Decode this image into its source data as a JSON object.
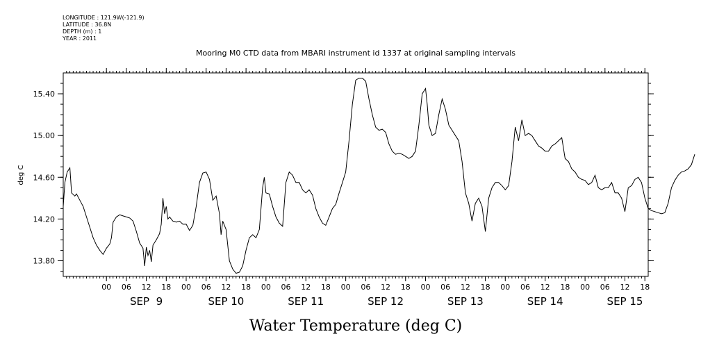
{
  "meta": {
    "longitude": "LONGITUDE : 121.9W(-121.9)",
    "latitude": "LATITUDE : 36.8N",
    "depth": "DEPTH (m) : 1",
    "year": "YEAR : 2011"
  },
  "chart_data": {
    "type": "line",
    "title": "Mooring M0 CTD data from MBARI instrument id 1337 at original sampling intervals",
    "xlabel": "Water Temperature (deg C)",
    "ylabel": "deg C",
    "ylim": [
      13.65,
      15.6
    ],
    "yticks": [
      "13.80",
      "14.20",
      "14.60",
      "15.00",
      "15.40"
    ],
    "xlim_hours": [
      -13,
      163
    ],
    "hour_ticks": [
      "00",
      "06",
      "12",
      "18",
      "00",
      "06",
      "12",
      "18",
      "00",
      "06",
      "12",
      "18",
      "00",
      "06",
      "12",
      "18",
      "00",
      "06",
      "12",
      "18",
      "00",
      "06",
      "12",
      "18",
      "00",
      "06",
      "12",
      "18"
    ],
    "day_labels": [
      "SEP  9",
      "SEP 10",
      "SEP 11",
      "SEP 12",
      "SEP 13",
      "SEP 14",
      "SEP 15"
    ],
    "grid": false,
    "series": [
      {
        "color": "#000000",
        "points": [
          [
            -13,
            14.32
          ],
          [
            -12.5,
            14.55
          ],
          [
            -11.8,
            14.65
          ],
          [
            -11,
            14.69
          ],
          [
            -10.5,
            14.45
          ],
          [
            -9.5,
            14.42
          ],
          [
            -9,
            14.44
          ],
          [
            -8,
            14.38
          ],
          [
            -7,
            14.32
          ],
          [
            -6,
            14.22
          ],
          [
            -5,
            14.12
          ],
          [
            -4,
            14.02
          ],
          [
            -3,
            13.95
          ],
          [
            -2,
            13.9
          ],
          [
            -1,
            13.86
          ],
          [
            0,
            13.92
          ],
          [
            1,
            13.96
          ],
          [
            1.5,
            14.02
          ],
          [
            2,
            14.17
          ],
          [
            3,
            14.22
          ],
          [
            4,
            14.24
          ],
          [
            5,
            14.23
          ],
          [
            6,
            14.22
          ],
          [
            7,
            14.21
          ],
          [
            8,
            14.18
          ],
          [
            9,
            14.08
          ],
          [
            10,
            13.97
          ],
          [
            11,
            13.92
          ],
          [
            11.5,
            13.75
          ],
          [
            12,
            13.93
          ],
          [
            12.5,
            13.85
          ],
          [
            13,
            13.9
          ],
          [
            13.5,
            13.79
          ],
          [
            14,
            13.95
          ],
          [
            15,
            14.0
          ],
          [
            16,
            14.06
          ],
          [
            16.5,
            14.15
          ],
          [
            17,
            14.4
          ],
          [
            17.5,
            14.25
          ],
          [
            18,
            14.32
          ],
          [
            18.5,
            14.2
          ],
          [
            19,
            14.22
          ],
          [
            20,
            14.18
          ],
          [
            21,
            14.17
          ],
          [
            22,
            14.18
          ],
          [
            23,
            14.15
          ],
          [
            24,
            14.15
          ],
          [
            25,
            14.09
          ],
          [
            26,
            14.14
          ],
          [
            27,
            14.32
          ],
          [
            28,
            14.55
          ],
          [
            29,
            14.64
          ],
          [
            30,
            14.65
          ],
          [
            31,
            14.58
          ],
          [
            32,
            14.38
          ],
          [
            33,
            14.42
          ],
          [
            34,
            14.25
          ],
          [
            34.5,
            14.05
          ],
          [
            35,
            14.18
          ],
          [
            36,
            14.1
          ],
          [
            37,
            13.8
          ],
          [
            38,
            13.72
          ],
          [
            39,
            13.68
          ],
          [
            40,
            13.69
          ],
          [
            41,
            13.75
          ],
          [
            42,
            13.9
          ],
          [
            43,
            14.02
          ],
          [
            44,
            14.05
          ],
          [
            45,
            14.02
          ],
          [
            46,
            14.1
          ],
          [
            47,
            14.5
          ],
          [
            47.5,
            14.6
          ],
          [
            48,
            14.45
          ],
          [
            49,
            14.44
          ],
          [
            50,
            14.32
          ],
          [
            51,
            14.22
          ],
          [
            52,
            14.16
          ],
          [
            53,
            14.13
          ],
          [
            54,
            14.55
          ],
          [
            55,
            14.65
          ],
          [
            56,
            14.62
          ],
          [
            57,
            14.55
          ],
          [
            58,
            14.55
          ],
          [
            59,
            14.48
          ],
          [
            60,
            14.45
          ],
          [
            61,
            14.48
          ],
          [
            62,
            14.43
          ],
          [
            63,
            14.3
          ],
          [
            64,
            14.22
          ],
          [
            65,
            14.16
          ],
          [
            66,
            14.14
          ],
          [
            67,
            14.22
          ],
          [
            68,
            14.3
          ],
          [
            69,
            14.34
          ],
          [
            70,
            14.45
          ],
          [
            71,
            14.55
          ],
          [
            72,
            14.65
          ],
          [
            73,
            14.95
          ],
          [
            74,
            15.3
          ],
          [
            75,
            15.53
          ],
          [
            76,
            15.55
          ],
          [
            77,
            15.55
          ],
          [
            78,
            15.52
          ],
          [
            79,
            15.35
          ],
          [
            80,
            15.2
          ],
          [
            81,
            15.08
          ],
          [
            82,
            15.05
          ],
          [
            83,
            15.06
          ],
          [
            84,
            15.03
          ],
          [
            85,
            14.92
          ],
          [
            86,
            14.85
          ],
          [
            87,
            14.82
          ],
          [
            88,
            14.83
          ],
          [
            89,
            14.82
          ],
          [
            90,
            14.8
          ],
          [
            91,
            14.78
          ],
          [
            92,
            14.8
          ],
          [
            93,
            14.85
          ],
          [
            94,
            15.1
          ],
          [
            95,
            15.4
          ],
          [
            96,
            15.45
          ],
          [
            96.5,
            15.3
          ],
          [
            97,
            15.1
          ],
          [
            98,
            15.0
          ],
          [
            99,
            15.02
          ],
          [
            100,
            15.2
          ],
          [
            101,
            15.35
          ],
          [
            102,
            15.25
          ],
          [
            103,
            15.1
          ],
          [
            104,
            15.05
          ],
          [
            105,
            15.0
          ],
          [
            106,
            14.95
          ],
          [
            107,
            14.75
          ],
          [
            108,
            14.45
          ],
          [
            109,
            14.35
          ],
          [
            110,
            14.18
          ],
          [
            111,
            14.35
          ],
          [
            112,
            14.4
          ],
          [
            113,
            14.32
          ],
          [
            114,
            14.08
          ],
          [
            115,
            14.4
          ],
          [
            116,
            14.5
          ],
          [
            117,
            14.55
          ],
          [
            118,
            14.55
          ],
          [
            119,
            14.52
          ],
          [
            120,
            14.48
          ],
          [
            121,
            14.52
          ],
          [
            122,
            14.75
          ],
          [
            123,
            15.08
          ],
          [
            124,
            14.95
          ],
          [
            125,
            15.15
          ],
          [
            126,
            15.0
          ],
          [
            127,
            15.02
          ],
          [
            128,
            15.0
          ],
          [
            129,
            14.95
          ],
          [
            130,
            14.9
          ],
          [
            131,
            14.88
          ],
          [
            132,
            14.85
          ],
          [
            133,
            14.85
          ],
          [
            134,
            14.9
          ],
          [
            135,
            14.92
          ],
          [
            136,
            14.95
          ],
          [
            137,
            14.98
          ],
          [
            138,
            14.78
          ],
          [
            139,
            14.75
          ],
          [
            140,
            14.68
          ],
          [
            141,
            14.65
          ],
          [
            142,
            14.6
          ],
          [
            143,
            14.58
          ],
          [
            144,
            14.57
          ],
          [
            145,
            14.53
          ],
          [
            146,
            14.55
          ],
          [
            147,
            14.62
          ],
          [
            148,
            14.5
          ],
          [
            149,
            14.48
          ],
          [
            150,
            14.5
          ],
          [
            151,
            14.5
          ],
          [
            152,
            14.55
          ],
          [
            153,
            14.45
          ],
          [
            154,
            14.45
          ],
          [
            155,
            14.4
          ],
          [
            156,
            14.27
          ],
          [
            157,
            14.5
          ],
          [
            158,
            14.52
          ],
          [
            159,
            14.58
          ],
          [
            160,
            14.6
          ],
          [
            161,
            14.55
          ],
          [
            162,
            14.4
          ],
          [
            163,
            14.3
          ],
          [
            164,
            14.28
          ],
          [
            165,
            14.27
          ],
          [
            166,
            14.26
          ],
          [
            167,
            14.25
          ],
          [
            168,
            14.26
          ],
          [
            169,
            14.35
          ],
          [
            170,
            14.5
          ],
          [
            171,
            14.57
          ],
          [
            172,
            14.62
          ],
          [
            173,
            14.65
          ],
          [
            174,
            14.66
          ],
          [
            175,
            14.68
          ],
          [
            176,
            14.72
          ],
          [
            177,
            14.82
          ]
        ]
      }
    ]
  }
}
